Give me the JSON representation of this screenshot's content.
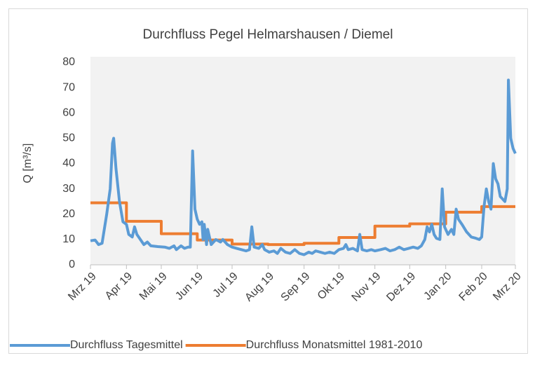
{
  "chart_data": {
    "type": "line",
    "title": "Durchfluss Pegel Helmarshausen / Diemel",
    "ylabel": "Q [m³/s]",
    "xlim": [
      0,
      366
    ],
    "xticks": [
      {
        "value": 0,
        "label": "Mrz 19"
      },
      {
        "value": 31,
        "label": "Apr 19"
      },
      {
        "value": 61,
        "label": "Mai 19"
      },
      {
        "value": 92,
        "label": "Jun 19"
      },
      {
        "value": 122,
        "label": "Jul 19"
      },
      {
        "value": 153,
        "label": "Aug 19"
      },
      {
        "value": 184,
        "label": "Sep 19"
      },
      {
        "value": 214,
        "label": "Okt 19"
      },
      {
        "value": 245,
        "label": "Nov 19"
      },
      {
        "value": 275,
        "label": "Dez 19"
      },
      {
        "value": 306,
        "label": "Jan 20"
      },
      {
        "value": 337,
        "label": "Feb 20"
      },
      {
        "value": 366,
        "label": "Mrz 20"
      }
    ],
    "ylim": [
      0,
      80
    ],
    "yticks": [
      0,
      10,
      20,
      30,
      40,
      50,
      60,
      70,
      80
    ],
    "grid": false,
    "legend": "bottom",
    "series": [
      {
        "name": "Durchfluss Tagesmittel",
        "color": "#5b9bd5",
        "x": [
          0,
          4,
          7,
          10,
          14,
          17,
          19,
          20,
          22,
          25,
          28,
          31,
          33,
          36,
          38,
          40,
          43,
          46,
          49,
          52,
          58,
          64,
          68,
          72,
          74,
          78,
          81,
          84,
          86,
          88,
          90,
          92,
          94,
          96,
          97,
          98,
          100,
          101,
          104,
          108,
          112,
          114,
          118,
          122,
          126,
          130,
          134,
          137,
          139,
          141,
          145,
          148,
          150,
          154,
          158,
          161,
          164,
          168,
          172,
          176,
          180,
          184,
          188,
          191,
          194,
          198,
          202,
          206,
          210,
          214,
          218,
          220,
          222,
          226,
          230,
          232,
          234,
          238,
          242,
          245,
          250,
          254,
          258,
          262,
          266,
          270,
          274,
          278,
          282,
          285,
          288,
          290,
          292,
          294,
          296,
          298,
          301,
          303,
          305,
          308,
          311,
          313,
          315,
          317,
          320,
          324,
          328,
          332,
          335,
          337,
          339,
          341,
          343,
          345,
          347,
          349,
          351,
          353,
          355,
          357,
          359,
          360,
          362,
          364,
          366
        ],
        "values": [
          9.5,
          9.8,
          8,
          8.5,
          20,
          30,
          48,
          50,
          38,
          25,
          17,
          16,
          12,
          11,
          15,
          12,
          10,
          8,
          9,
          7.5,
          7.2,
          7,
          6.5,
          7.5,
          6,
          7.5,
          6.5,
          7,
          7,
          45,
          22,
          18,
          16,
          17,
          10,
          16,
          8,
          14,
          8,
          10,
          9,
          10,
          8,
          7,
          6.5,
          6,
          5.5,
          6,
          15,
          7,
          6.5,
          8,
          6,
          5,
          5.5,
          4.5,
          6.5,
          5,
          4.5,
          6,
          4.5,
          4,
          5,
          4.5,
          5.5,
          5,
          4.5,
          5,
          4.5,
          6,
          6.5,
          8,
          6,
          6.5,
          5.5,
          12,
          6,
          5.5,
          6,
          5.5,
          6,
          6.5,
          5.5,
          6,
          7,
          6,
          6.5,
          7,
          6.5,
          7.5,
          10,
          15,
          13,
          16,
          12,
          10.5,
          10,
          30,
          15,
          12,
          14,
          12,
          22,
          18,
          16,
          13,
          11,
          10.5,
          10,
          11,
          23,
          30,
          25,
          22,
          40,
          34,
          32,
          27,
          26,
          25,
          30,
          73,
          50,
          46,
          44
        ]
      },
      {
        "name": "Durchfluss Monatsmittel 1981-2010",
        "color": "#ed7d31",
        "x": [
          0,
          31,
          31,
          61,
          61,
          92,
          92,
          122,
          122,
          153,
          153,
          184,
          184,
          214,
          214,
          245,
          245,
          275,
          275,
          306,
          306,
          337,
          337,
          366
        ],
        "values": [
          24.5,
          24.5,
          17.2,
          17.2,
          12.3,
          12.3,
          9.8,
          9.8,
          8.2,
          8.2,
          8,
          8,
          8.5,
          8.5,
          10.8,
          10.8,
          15.3,
          15.3,
          16.2,
          16.2,
          20.8,
          20.8,
          23,
          23
        ]
      }
    ]
  }
}
